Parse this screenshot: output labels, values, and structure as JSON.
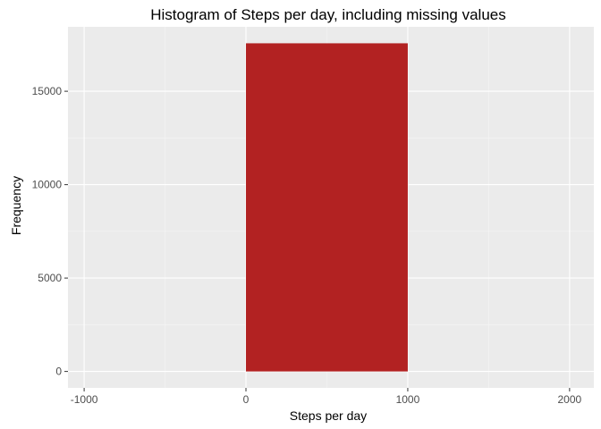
{
  "chart_data": {
    "type": "bar",
    "title": "Histogram of Steps per day, including missing values",
    "xlabel": "Steps per day",
    "ylabel": "Frequency",
    "bins": [
      {
        "x_start": 0,
        "x_end": 1000,
        "value": 17568
      }
    ],
    "xlim": [
      -1100,
      2150
    ],
    "ylim": [
      -880,
      18450
    ],
    "x_ticks": [
      -1000,
      0,
      1000,
      2000
    ],
    "y_ticks": [
      0,
      5000,
      10000,
      15000
    ],
    "grid": true,
    "legend": "none",
    "colors": {
      "bar": "#B22222",
      "panel": "#EBEBEB",
      "grid_major": "#FFFFFF",
      "grid_minor": "#F5F5F5",
      "tick_label": "#4D4D4D",
      "tick_mark": "#333333"
    }
  }
}
